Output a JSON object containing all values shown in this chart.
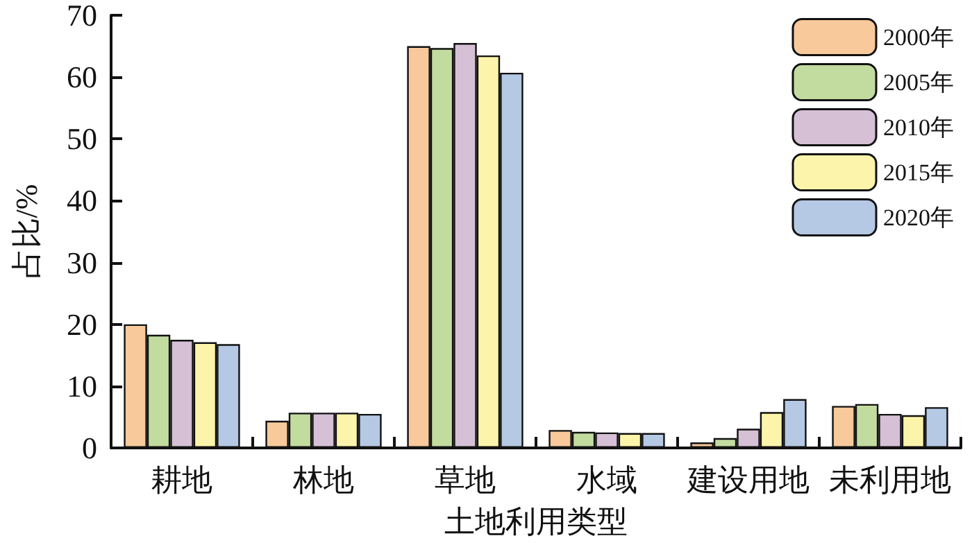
{
  "chart_data": {
    "type": "bar",
    "xlabel": "土地利用类型",
    "ylabel": "占比/%",
    "categories": [
      "耕地",
      "林地",
      "草地",
      "水域",
      "建设用地",
      "未利用地"
    ],
    "series": [
      {
        "name": "2000年",
        "color": "#f8c99a",
        "values": [
          20.0,
          4.4,
          65.0,
          2.9,
          0.9,
          6.8
        ]
      },
      {
        "name": "2005年",
        "color": "#c2dca0",
        "values": [
          18.3,
          5.7,
          64.7,
          2.6,
          1.6,
          7.1
        ]
      },
      {
        "name": "2010年",
        "color": "#d6c0d6",
        "values": [
          17.5,
          5.7,
          65.5,
          2.5,
          3.1,
          5.5
        ]
      },
      {
        "name": "2015年",
        "color": "#fbf4aa",
        "values": [
          17.1,
          5.7,
          63.5,
          2.4,
          5.8,
          5.3
        ]
      },
      {
        "name": "2020年",
        "color": "#b5c9e4",
        "values": [
          16.8,
          5.5,
          60.7,
          2.4,
          7.9,
          6.6
        ]
      }
    ],
    "ylim": [
      0,
      70
    ],
    "yticks": [
      0,
      10,
      20,
      30,
      40,
      50,
      60,
      70
    ],
    "grid": false,
    "legend": "top right"
  }
}
